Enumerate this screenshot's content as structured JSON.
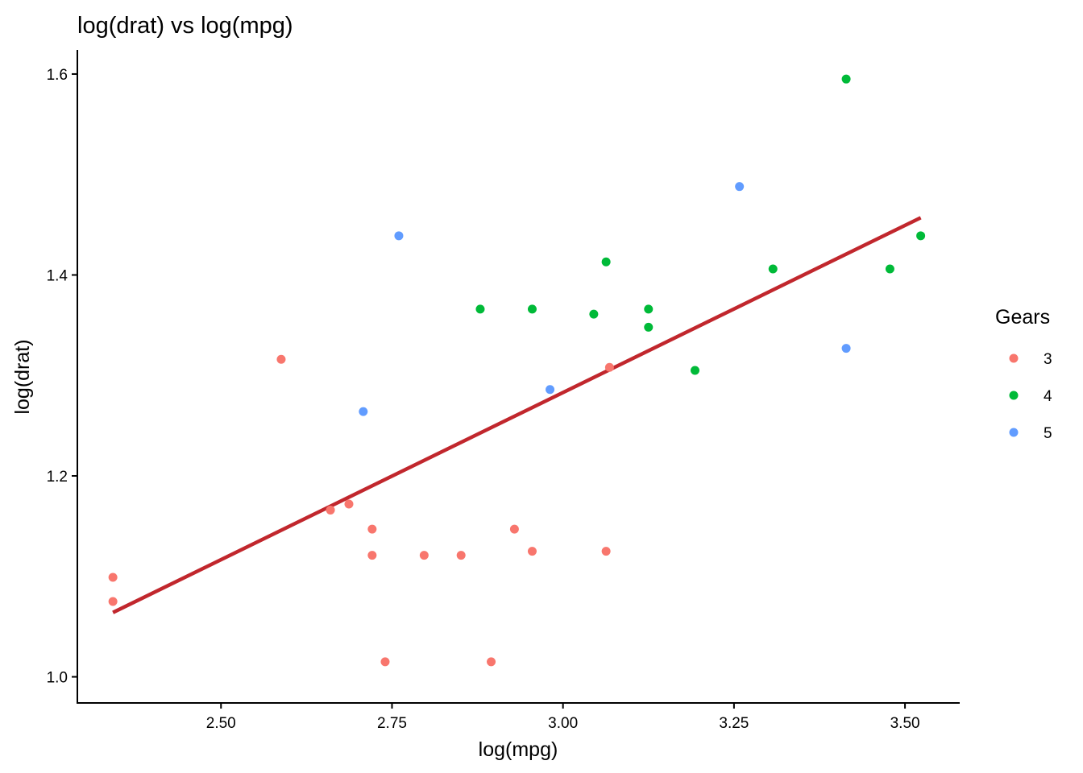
{
  "chart_data": {
    "type": "scatter",
    "title": "log(drat) vs log(mpg)",
    "xlabel": "log(mpg)",
    "ylabel": "log(drat)",
    "xlim": [
      2.29,
      3.58
    ],
    "ylim": [
      0.974,
      1.624
    ],
    "x_ticks": [
      2.5,
      2.75,
      3.0,
      3.25,
      3.5
    ],
    "x_tick_labels": [
      "2.50",
      "2.75",
      "3.00",
      "3.25",
      "3.50"
    ],
    "y_ticks": [
      1.0,
      1.2,
      1.4,
      1.6
    ],
    "y_tick_labels": [
      "1.0",
      "1.2",
      "1.4",
      "1.6"
    ],
    "grid": false,
    "legend": {
      "title": "Gears",
      "placement": "right",
      "entries": [
        {
          "label": "3",
          "color": "#F8766D"
        },
        {
          "label": "4",
          "color": "#00BA38"
        },
        {
          "label": "5",
          "color": "#619CFF"
        }
      ]
    },
    "series": [
      {
        "name": "3",
        "color": "#F8766D",
        "points": [
          [
            2.342,
            1.099
          ],
          [
            2.342,
            1.075
          ],
          [
            2.588,
            1.316
          ],
          [
            2.66,
            1.166
          ],
          [
            2.687,
            1.172
          ],
          [
            2.721,
            1.147
          ],
          [
            2.721,
            1.121
          ],
          [
            2.74,
            1.015
          ],
          [
            2.797,
            1.121
          ],
          [
            2.851,
            1.121
          ],
          [
            2.895,
            1.015
          ],
          [
            2.929,
            1.147
          ],
          [
            2.955,
            1.125
          ],
          [
            3.063,
            1.125
          ],
          [
            3.068,
            1.308
          ]
        ]
      },
      {
        "name": "4",
        "color": "#00BA38",
        "points": [
          [
            2.879,
            1.366
          ],
          [
            2.955,
            1.366
          ],
          [
            3.045,
            1.361
          ],
          [
            3.063,
            1.413
          ],
          [
            3.125,
            1.366
          ],
          [
            3.125,
            1.348
          ],
          [
            3.193,
            1.305
          ],
          [
            3.307,
            1.406
          ],
          [
            3.414,
            1.595
          ],
          [
            3.478,
            1.406
          ],
          [
            3.523,
            1.439
          ]
        ]
      },
      {
        "name": "5",
        "color": "#619CFF",
        "points": [
          [
            2.708,
            1.264
          ],
          [
            2.76,
            1.439
          ],
          [
            2.981,
            1.286
          ],
          [
            3.258,
            1.488
          ],
          [
            3.414,
            1.327
          ]
        ]
      }
    ],
    "trend_line": {
      "color": "#C1272D",
      "points": [
        [
          2.342,
          1.064
        ],
        [
          3.523,
          1.457
        ]
      ]
    }
  }
}
